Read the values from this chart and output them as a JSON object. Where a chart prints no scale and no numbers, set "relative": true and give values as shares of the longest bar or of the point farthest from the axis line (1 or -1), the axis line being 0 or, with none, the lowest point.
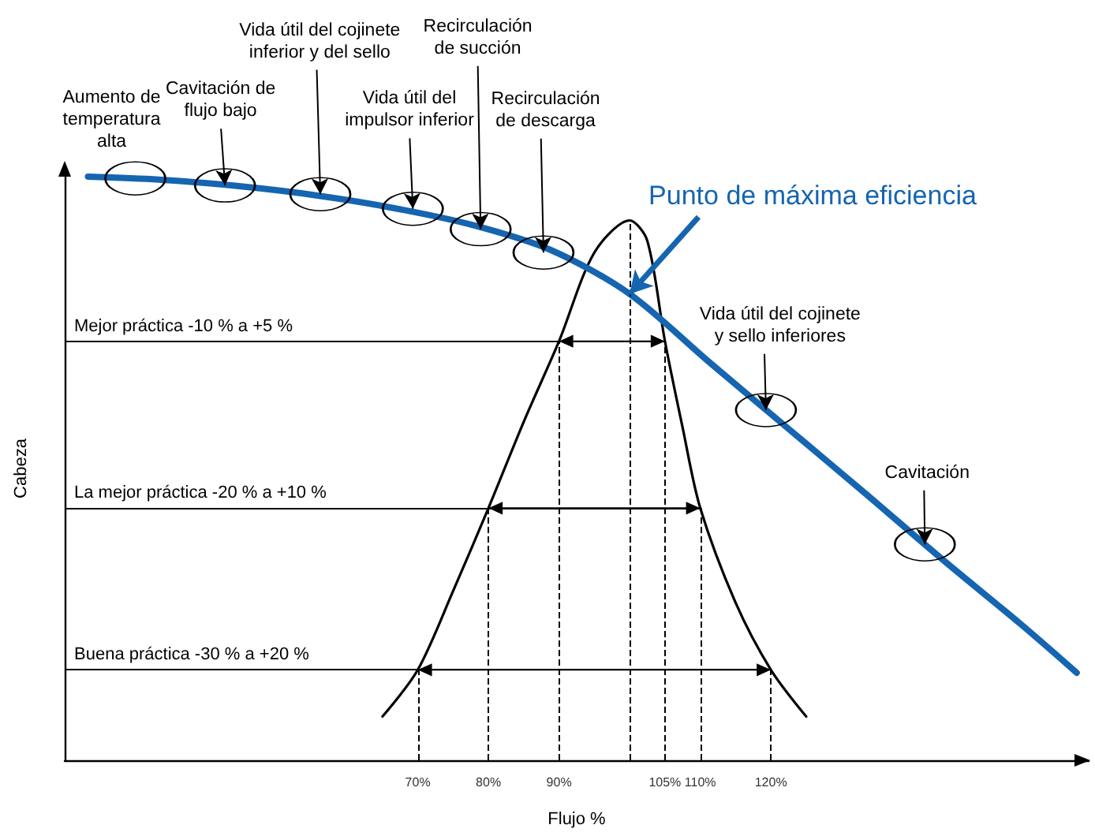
{
  "chart_data": {
    "type": "line",
    "relative": true,
    "xlabel": "Flujo %",
    "ylabel": "Cabeza",
    "xlim": [
      20,
      165
    ],
    "xticks": [
      {
        "value": 70,
        "label": "70%"
      },
      {
        "value": 80,
        "label": "80%"
      },
      {
        "value": 90,
        "label": "90%"
      },
      {
        "value": 105,
        "label": "105%"
      },
      {
        "value": 110,
        "label": "110%"
      },
      {
        "value": 120,
        "label": "120%"
      }
    ],
    "grid": "x",
    "marker": "none",
    "line_style": "solid",
    "series": [
      {
        "color": "#1565b0",
        "x": [
          23.3,
          33.3,
          44.4,
          55.6,
          66.7,
          77.8,
          88.9,
          100,
          111.1,
          122.2,
          133.3,
          144.4,
          155.6,
          163.3
        ],
        "values": [
          1.0,
          0.995,
          0.984,
          0.968,
          0.946,
          0.917,
          0.874,
          0.799,
          0.684,
          0.571,
          0.458,
          0.343,
          0.231,
          0.15
        ]
      },
      {
        "color": "#000000",
        "x": [
          65,
          70,
          75,
          80,
          85,
          90,
          95,
          100,
          102.5,
          105,
          107.5,
          110,
          115,
          120,
          125
        ],
        "values": [
          0.075,
          0.155,
          0.29,
          0.432,
          0.58,
          0.718,
          0.87,
          0.925,
          0.89,
          0.718,
          0.57,
          0.432,
          0.27,
          0.155,
          0.075
        ]
      }
    ],
    "ref_lines": [
      {
        "axis": "y",
        "value": 0.718,
        "label": "Mejor práctica -10 % a +5 %"
      },
      {
        "axis": "y",
        "value": 0.432,
        "label": "La mejor práctica -20 % a +10 %"
      },
      {
        "axis": "y",
        "value": 0.155,
        "label": "Buena práctica -30 % a +20 %"
      },
      {
        "axis": "x",
        "value": 100,
        "line_style": "dashed"
      }
    ],
    "annotations": [
      {
        "text": "Aumento de\ntemperatura\nalta",
        "x": 30,
        "y": 0.997
      },
      {
        "text": "Cavitación de\nflujo bajo",
        "x": 42.7,
        "y": 0.985
      },
      {
        "text": "Vida útil del cojinete\ninferior y del sello",
        "x": 56.2,
        "y": 0.97
      },
      {
        "text": "Vida útil del\nimpulsor inferior",
        "x": 69.3,
        "y": 0.945
      },
      {
        "text": "Recirculación\nde succión",
        "x": 78.9,
        "y": 0.91
      },
      {
        "text": "Recirculación\nde descarga",
        "x": 87.8,
        "y": 0.87
      },
      {
        "text": "Vida útil del cojinete\ny sello inferiores",
        "x": 119.3,
        "y": 0.6
      },
      {
        "text": "Cavitación",
        "x": 141.8,
        "y": 0.37
      },
      {
        "text": "Punto de máxima eficiencia",
        "x": 100,
        "y": 0.799
      }
    ]
  }
}
